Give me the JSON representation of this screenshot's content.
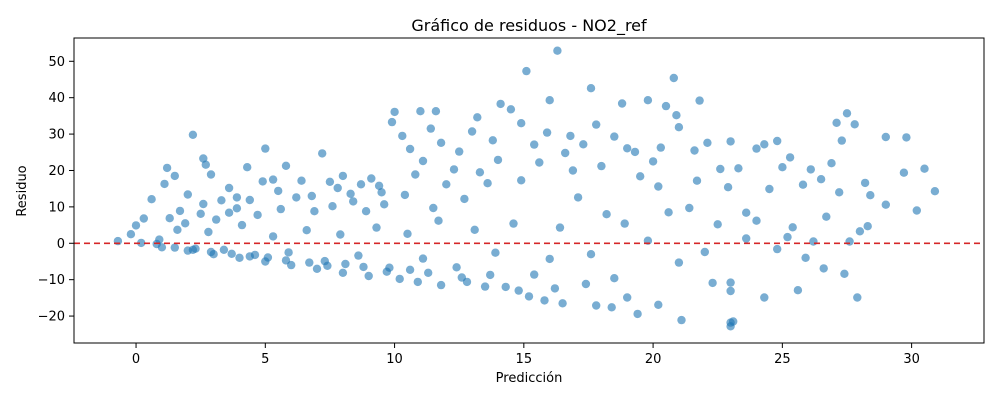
{
  "chart_data": {
    "type": "scatter",
    "title": "Gráfico de residuos - NO2_ref",
    "xlabel": "Predicción",
    "ylabel": "Residuo",
    "xlim": [
      -2.4,
      32.8
    ],
    "ylim": [
      -27.4,
      56.4
    ],
    "xticks": [
      0,
      5,
      10,
      15,
      20,
      25,
      30
    ],
    "yticks": [
      -20,
      -10,
      0,
      10,
      20,
      30,
      40,
      50
    ],
    "grid": false,
    "legend": "none",
    "point_color": "#1f77b4",
    "reference_line": {
      "y": 0,
      "color": "#d62728",
      "style": "dashed"
    },
    "points": [
      [
        -0.7,
        0.6
      ],
      [
        -0.2,
        2.5
      ],
      [
        0.0,
        4.9
      ],
      [
        0.2,
        0.1
      ],
      [
        0.3,
        6.8
      ],
      [
        0.6,
        12.1
      ],
      [
        0.9,
        1.0
      ],
      [
        1.1,
        16.3
      ],
      [
        1.2,
        20.7
      ],
      [
        1.5,
        18.5
      ],
      [
        2.0,
        13.4
      ],
      [
        2.2,
        29.8
      ],
      [
        2.6,
        23.3
      ],
      [
        2.7,
        21.6
      ],
      [
        2.9,
        18.9
      ],
      [
        3.3,
        11.8
      ],
      [
        3.6,
        15.2
      ],
      [
        3.9,
        12.6
      ],
      [
        4.3,
        20.9
      ],
      [
        4.9,
        17.0
      ],
      [
        5.0,
        26.0
      ],
      [
        5.3,
        17.5
      ],
      [
        5.8,
        21.3
      ],
      [
        6.4,
        17.2
      ],
      [
        7.2,
        24.7
      ],
      [
        7.5,
        16.9
      ],
      [
        8.0,
        18.5
      ],
      [
        8.7,
        16.2
      ],
      [
        9.1,
        17.8
      ],
      [
        9.5,
        14.0
      ],
      [
        10.0,
        36.1
      ],
      [
        9.9,
        33.3
      ],
      [
        10.3,
        29.5
      ],
      [
        10.6,
        25.9
      ],
      [
        11.0,
        36.3
      ],
      [
        11.1,
        22.6
      ],
      [
        11.4,
        31.5
      ],
      [
        11.6,
        36.3
      ],
      [
        11.8,
        27.6
      ],
      [
        12.3,
        20.3
      ],
      [
        12.5,
        25.2
      ],
      [
        13.0,
        30.7
      ],
      [
        13.2,
        34.6
      ],
      [
        13.8,
        28.3
      ],
      [
        14.1,
        38.3
      ],
      [
        14.5,
        36.8
      ],
      [
        14.9,
        33.0
      ],
      [
        15.1,
        47.3
      ],
      [
        15.4,
        27.1
      ],
      [
        15.9,
        30.4
      ],
      [
        16.0,
        39.3
      ],
      [
        16.3,
        52.9
      ],
      [
        16.8,
        29.5
      ],
      [
        17.3,
        27.2
      ],
      [
        17.6,
        42.6
      ],
      [
        17.8,
        32.6
      ],
      [
        18.5,
        29.3
      ],
      [
        18.8,
        38.4
      ],
      [
        19.0,
        26.1
      ],
      [
        19.3,
        25.1
      ],
      [
        19.8,
        39.3
      ],
      [
        20.3,
        26.3
      ],
      [
        20.5,
        37.7
      ],
      [
        20.8,
        45.4
      ],
      [
        20.9,
        35.2
      ],
      [
        21.0,
        31.9
      ],
      [
        21.6,
        25.5
      ],
      [
        21.8,
        39.2
      ],
      [
        22.1,
        27.6
      ],
      [
        22.6,
        20.4
      ],
      [
        23.0,
        28.0
      ],
      [
        23.3,
        20.6
      ],
      [
        24.0,
        26.0
      ],
      [
        24.3,
        27.2
      ],
      [
        24.8,
        28.1
      ],
      [
        25.0,
        20.9
      ],
      [
        25.3,
        23.6
      ],
      [
        25.8,
        16.1
      ],
      [
        26.1,
        20.3
      ],
      [
        26.5,
        17.6
      ],
      [
        26.9,
        22.0
      ],
      [
        27.1,
        33.1
      ],
      [
        27.3,
        28.2
      ],
      [
        27.5,
        35.7
      ],
      [
        27.8,
        32.7
      ],
      [
        28.2,
        16.6
      ],
      [
        28.4,
        13.2
      ],
      [
        29.0,
        29.2
      ],
      [
        29.7,
        19.4
      ],
      [
        29.8,
        29.1
      ],
      [
        30.2,
        9.0
      ],
      [
        30.5,
        20.5
      ],
      [
        30.9,
        14.3
      ],
      [
        26.7,
        7.3
      ],
      [
        27.2,
        14.0
      ],
      [
        27.6,
        0.5
      ],
      [
        28.0,
        3.3
      ],
      [
        28.3,
        4.7
      ],
      [
        29.0,
        10.6
      ],
      [
        25.2,
        1.7
      ],
      [
        25.4,
        4.4
      ],
      [
        25.9,
        -4.0
      ],
      [
        26.2,
        0.5
      ],
      [
        26.6,
        -6.9
      ],
      [
        27.4,
        -8.4
      ],
      [
        27.9,
        -14.9
      ],
      [
        25.6,
        -12.9
      ],
      [
        24.3,
        -14.9
      ],
      [
        23.0,
        -21.8
      ],
      [
        23.0,
        -22.8
      ],
      [
        23.1,
        -21.5
      ],
      [
        21.1,
        -21.1
      ],
      [
        22.3,
        -10.9
      ],
      [
        23.0,
        -10.8
      ],
      [
        23.0,
        -13.1
      ],
      [
        19.4,
        -19.4
      ],
      [
        20.2,
        -16.9
      ],
      [
        19.0,
        -14.9
      ],
      [
        18.4,
        -17.6
      ],
      [
        17.8,
        -17.1
      ],
      [
        16.5,
        -16.5
      ],
      [
        15.8,
        -15.7
      ],
      [
        15.2,
        -14.6
      ],
      [
        14.3,
        -12.0
      ],
      [
        13.5,
        -11.9
      ],
      [
        12.8,
        -10.6
      ],
      [
        11.8,
        -11.5
      ],
      [
        10.9,
        -10.6
      ],
      [
        10.2,
        -9.8
      ],
      [
        9.0,
        -9.0
      ],
      [
        8.0,
        -8.1
      ],
      [
        7.0,
        -7.0
      ],
      [
        6.0,
        -6.0
      ],
      [
        5.0,
        -5.0
      ],
      [
        4.0,
        -4.0
      ],
      [
        3.0,
        -3.0
      ],
      [
        2.0,
        -2.0
      ],
      [
        1.0,
        -1.1
      ],
      [
        24.0,
        6.2
      ],
      [
        23.6,
        8.4
      ],
      [
        24.5,
        14.9
      ],
      [
        22.5,
        5.2
      ],
      [
        21.4,
        9.7
      ],
      [
        20.2,
        15.6
      ],
      [
        19.5,
        18.4
      ],
      [
        18.9,
        5.4
      ],
      [
        18.2,
        8.0
      ],
      [
        17.1,
        12.6
      ],
      [
        16.4,
        4.3
      ],
      [
        16.0,
        -4.3
      ],
      [
        15.4,
        -8.6
      ],
      [
        14.6,
        5.4
      ],
      [
        13.9,
        -2.6
      ],
      [
        13.1,
        3.7
      ],
      [
        12.4,
        -6.6
      ],
      [
        11.7,
        6.2
      ],
      [
        11.1,
        -4.2
      ],
      [
        10.5,
        2.6
      ],
      [
        9.8,
        -6.7
      ],
      [
        9.3,
        4.3
      ],
      [
        8.6,
        -3.4
      ],
      [
        7.9,
        2.4
      ],
      [
        7.3,
        -4.9
      ],
      [
        6.6,
        3.6
      ],
      [
        5.9,
        -2.5
      ],
      [
        5.3,
        1.9
      ],
      [
        4.6,
        -3.2
      ],
      [
        4.1,
        5.0
      ],
      [
        3.4,
        -1.8
      ],
      [
        2.8,
        3.1
      ],
      [
        2.3,
        -1.5
      ],
      [
        1.6,
        3.7
      ],
      [
        0.8,
        -0.2
      ],
      [
        19.8,
        0.7
      ],
      [
        21.0,
        -5.3
      ],
      [
        22.0,
        -2.4
      ],
      [
        23.6,
        1.3
      ],
      [
        24.8,
        -1.6
      ],
      [
        20.6,
        8.5
      ],
      [
        17.6,
        -3.0
      ],
      [
        16.9,
        20.0
      ],
      [
        15.6,
        22.2
      ],
      [
        14.9,
        17.3
      ],
      [
        13.6,
        16.5
      ],
      [
        12.7,
        12.2
      ],
      [
        11.5,
        9.7
      ],
      [
        10.4,
        13.3
      ],
      [
        9.6,
        10.7
      ],
      [
        8.9,
        8.8
      ],
      [
        8.3,
        13.6
      ],
      [
        7.6,
        10.2
      ],
      [
        6.9,
        8.8
      ],
      [
        6.2,
        12.6
      ],
      [
        5.6,
        9.4
      ],
      [
        4.7,
        7.8
      ],
      [
        3.9,
        9.6
      ],
      [
        3.1,
        6.5
      ],
      [
        2.5,
        8.1
      ],
      [
        1.9,
        5.5
      ],
      [
        1.3,
        6.9
      ],
      [
        22.9,
        15.4
      ],
      [
        21.7,
        17.2
      ],
      [
        20.0,
        22.5
      ],
      [
        18.0,
        21.2
      ],
      [
        16.6,
        24.8
      ],
      [
        14.0,
        22.9
      ],
      [
        13.3,
        19.5
      ],
      [
        12.0,
        16.2
      ],
      [
        10.8,
        18.9
      ],
      [
        9.4,
        15.8
      ],
      [
        8.4,
        11.5
      ],
      [
        7.8,
        15.2
      ],
      [
        6.8,
        13.0
      ],
      [
        5.5,
        14.4
      ],
      [
        4.4,
        11.9
      ],
      [
        3.6,
        8.4
      ],
      [
        2.6,
        10.8
      ],
      [
        1.7,
        8.9
      ],
      [
        18.5,
        -9.6
      ],
      [
        17.4,
        -11.2
      ],
      [
        16.2,
        -12.4
      ],
      [
        14.8,
        -13.0
      ],
      [
        13.7,
        -8.7
      ],
      [
        12.6,
        -9.4
      ],
      [
        11.3,
        -8.1
      ],
      [
        10.6,
        -7.3
      ],
      [
        9.7,
        -7.8
      ],
      [
        8.8,
        -6.5
      ],
      [
        8.1,
        -5.7
      ],
      [
        7.4,
        -6.2
      ],
      [
        6.7,
        -5.3
      ],
      [
        5.8,
        -4.7
      ],
      [
        5.1,
        -3.9
      ],
      [
        4.4,
        -3.6
      ],
      [
        3.7,
        -2.9
      ],
      [
        2.9,
        -2.4
      ],
      [
        2.2,
        -1.8
      ],
      [
        1.5,
        -1.2
      ]
    ]
  }
}
